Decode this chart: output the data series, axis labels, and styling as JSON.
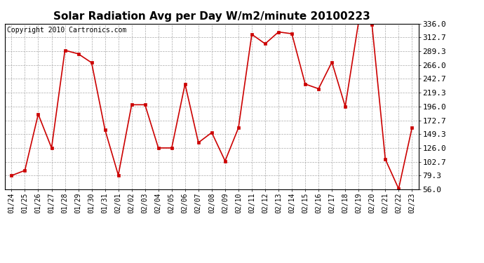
{
  "title": "Solar Radiation Avg per Day W/m2/minute 20100223",
  "copyright": "Copyright 2010 Cartronics.com",
  "dates": [
    "01/24",
    "01/25",
    "01/26",
    "01/27",
    "01/28",
    "01/29",
    "01/30",
    "01/31",
    "02/01",
    "02/02",
    "02/03",
    "02/04",
    "02/05",
    "02/06",
    "02/07",
    "02/08",
    "02/09",
    "02/10",
    "02/11",
    "02/12",
    "02/13",
    "02/14",
    "02/15",
    "02/16",
    "02/17",
    "02/18",
    "02/19",
    "02/20",
    "02/21",
    "02/22",
    "02/23"
  ],
  "values": [
    79.3,
    88.0,
    183.0,
    126.0,
    291.0,
    285.0,
    270.0,
    157.0,
    80.0,
    199.0,
    199.0,
    126.0,
    126.0,
    234.0,
    135.0,
    152.0,
    104.0,
    160.0,
    318.0,
    302.0,
    322.0,
    319.0,
    234.0,
    226.0,
    271.0,
    196.0,
    339.0,
    335.0,
    107.0,
    57.0,
    160.0
  ],
  "line_color": "#cc0000",
  "marker": "s",
  "marker_size": 2.5,
  "bg_color": "#ffffff",
  "grid_color": "#aaaaaa",
  "ylim": [
    56.0,
    336.0
  ],
  "yticks": [
    56.0,
    79.3,
    102.7,
    126.0,
    149.3,
    172.7,
    196.0,
    219.3,
    242.7,
    266.0,
    289.3,
    312.7,
    336.0
  ],
  "title_fontsize": 11,
  "copyright_fontsize": 7,
  "tick_fontsize": 7,
  "ytick_fontsize": 8
}
